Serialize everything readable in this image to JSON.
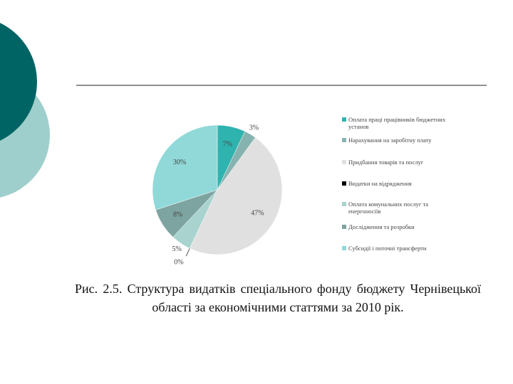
{
  "chart_data": {
    "type": "pie",
    "title": "Рис. 2.5. Структура видатків спеціального фонду бюджету Чернівецької області за економічними статтями за 2010 рік.",
    "categories": [
      "Оплата праці працівників бюджетних установ",
      "Нарахування на заробітну плату",
      "Придбання товарів та послуг",
      "Видатки на відрядження",
      "Оплата комунальних послуг та енергоносіїв",
      "Дослідження та розробки",
      "Субсидії і поточні трансферти"
    ],
    "values": [
      7,
      3,
      47,
      0,
      5,
      8,
      30
    ],
    "value_labels": [
      "7%",
      "3%",
      "47%",
      "0%",
      "5%",
      "8%",
      "30%"
    ],
    "colors": [
      "#2fb3ae",
      "#86b3b0",
      "#e0e0e0",
      "#000000",
      "#a9d3cf",
      "#7ea4a1",
      "#90d9d8"
    ],
    "legend": "right"
  }
}
